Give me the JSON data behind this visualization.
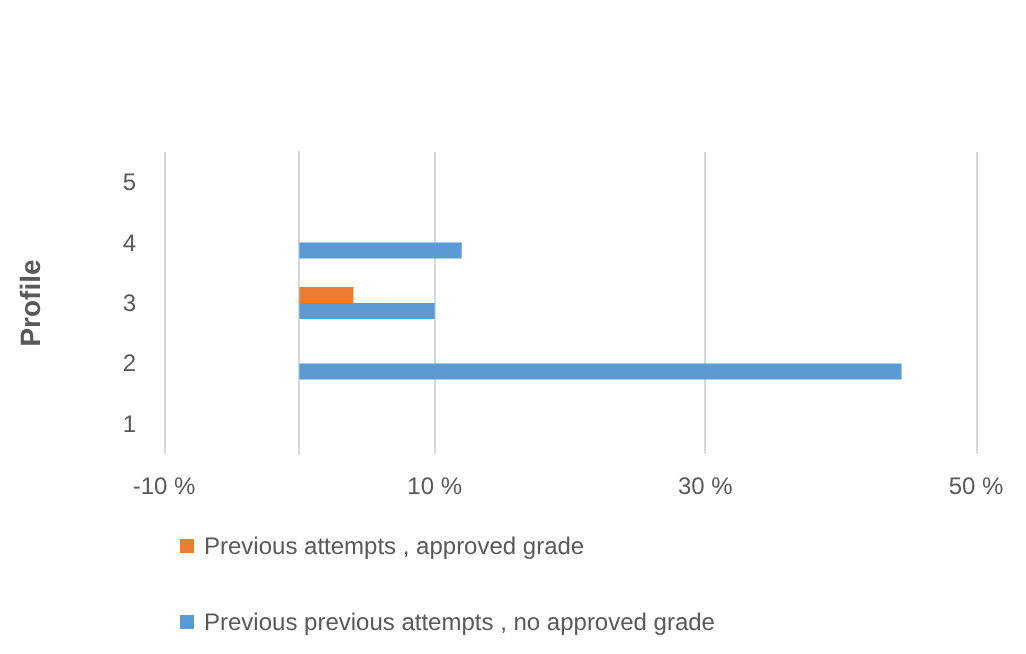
{
  "chart_data": {
    "type": "bar",
    "orientation": "horizontal",
    "ylabel": "Profile",
    "categories": [
      "5",
      "4",
      "3",
      "2",
      "1"
    ],
    "series": [
      {
        "name": "Previous attempts , approved grade",
        "color": "#ed7d31",
        "values": [
          null,
          null,
          4,
          null,
          null
        ]
      },
      {
        "name": "Previous previous attempts , no approved grade",
        "color": "#5b9bd5",
        "values": [
          null,
          12,
          10,
          44.5,
          null
        ]
      }
    ],
    "xlim": [
      -10,
      50
    ],
    "xticks": [
      {
        "value": -10,
        "label": "-10 %"
      },
      {
        "value": 10,
        "label": "10 %"
      },
      {
        "value": 30,
        "label": "30 %"
      },
      {
        "value": 50,
        "label": "50 %"
      }
    ],
    "grid": "x",
    "legend": "bottom"
  }
}
